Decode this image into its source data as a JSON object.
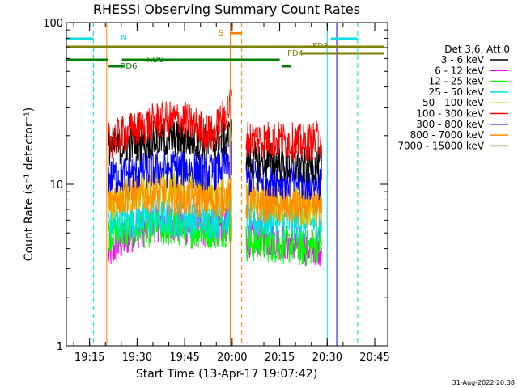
{
  "chart_data": {
    "type": "line",
    "title": "RHESSI Observing Summary Count Rates",
    "xlabel": "Start Time (13-Apr-17 19:07:42)",
    "ylabel": "Count Rate (s⁻¹ detector⁻¹)",
    "y_scale": "log",
    "ylim": [
      1,
      100
    ],
    "y_ticks": [
      {
        "v": 1,
        "label": "1"
      },
      {
        "v": 10,
        "label": "10"
      },
      {
        "v": 100,
        "label": "100"
      }
    ],
    "xlim": [
      19.128,
      20.818
    ],
    "x_ticks": [
      {
        "v": 19.25,
        "label": "19:15"
      },
      {
        "v": 19.5,
        "label": "19:30"
      },
      {
        "v": 19.75,
        "label": "19:45"
      },
      {
        "v": 20.0,
        "label": "20:00"
      },
      {
        "v": 20.25,
        "label": "20:15"
      },
      {
        "v": 20.5,
        "label": "20:30"
      },
      {
        "v": 20.75,
        "label": "20:45"
      }
    ],
    "legend_header": "Det 3,6, Att 0",
    "legend_placement": "right",
    "data_gap": [
      20.0,
      20.07
    ],
    "series": [
      {
        "name": "3 - 6 keV",
        "color": "#000000",
        "points": [
          [
            19.35,
            17
          ],
          [
            19.5,
            18
          ],
          [
            19.62,
            19
          ],
          [
            19.75,
            19
          ],
          [
            19.9,
            18
          ],
          [
            20.0,
            20
          ],
          [
            20.08,
            14
          ],
          [
            20.2,
            14
          ],
          [
            20.3,
            13
          ],
          [
            20.38,
            13
          ],
          [
            20.47,
            13
          ]
        ]
      },
      {
        "name": "6 - 12 keV",
        "color": "#ff00ff",
        "points": [
          [
            19.35,
            3.7
          ],
          [
            19.5,
            5.2
          ],
          [
            19.62,
            5.8
          ],
          [
            19.75,
            5.5
          ],
          [
            19.9,
            5.2
          ],
          [
            20.0,
            6
          ],
          [
            20.08,
            4.6
          ],
          [
            20.2,
            4.6
          ],
          [
            20.3,
            4.3
          ],
          [
            20.38,
            4.1
          ],
          [
            20.47,
            4.1
          ]
        ]
      },
      {
        "name": "12 - 25 keV",
        "color": "#00ff00",
        "points": [
          [
            19.35,
            5
          ],
          [
            19.5,
            5.2
          ],
          [
            19.62,
            5.4
          ],
          [
            19.75,
            5.3
          ],
          [
            19.9,
            5.2
          ],
          [
            20.0,
            5.5
          ],
          [
            20.08,
            4.3
          ],
          [
            20.2,
            4.3
          ],
          [
            20.3,
            4.2
          ],
          [
            20.38,
            4
          ],
          [
            20.47,
            4.4
          ]
        ]
      },
      {
        "name": "25 - 50 keV",
        "color": "#00e0e0",
        "points": [
          [
            19.35,
            5.8
          ],
          [
            19.5,
            6
          ],
          [
            19.62,
            6.2
          ],
          [
            19.75,
            6.1
          ],
          [
            19.9,
            6
          ],
          [
            20.0,
            6.3
          ],
          [
            20.08,
            6
          ],
          [
            20.2,
            6
          ],
          [
            20.3,
            5.8
          ],
          [
            20.38,
            5.8
          ],
          [
            20.47,
            5.8
          ]
        ]
      },
      {
        "name": "50 - 100 keV",
        "color": "#d0d000",
        "points": [
          [
            19.35,
            7.5
          ],
          [
            19.5,
            9
          ],
          [
            19.62,
            9.5
          ],
          [
            19.75,
            9.2
          ],
          [
            19.9,
            8.8
          ],
          [
            20.0,
            9.5
          ],
          [
            20.08,
            8
          ],
          [
            20.2,
            8
          ],
          [
            20.3,
            7.5
          ],
          [
            20.38,
            7.2
          ],
          [
            20.47,
            7.2
          ]
        ]
      },
      {
        "name": "100 - 300 keV",
        "color": "#ff0000",
        "points": [
          [
            19.35,
            18.5
          ],
          [
            19.5,
            22
          ],
          [
            19.62,
            25
          ],
          [
            19.75,
            25
          ],
          [
            19.9,
            20
          ],
          [
            20.0,
            32
          ],
          [
            20.08,
            19
          ],
          [
            20.2,
            19
          ],
          [
            20.3,
            18.5
          ],
          [
            20.38,
            18
          ],
          [
            20.47,
            19
          ]
        ]
      },
      {
        "name": "300 - 800 keV",
        "color": "#0000ff",
        "points": [
          [
            19.35,
            11
          ],
          [
            19.5,
            12
          ],
          [
            19.62,
            12.5
          ],
          [
            19.75,
            12.5
          ],
          [
            19.9,
            11.8
          ],
          [
            20.0,
            14
          ],
          [
            20.08,
            11
          ],
          [
            20.2,
            11
          ],
          [
            20.3,
            10.5
          ],
          [
            20.38,
            10.2
          ],
          [
            20.47,
            10.5
          ]
        ]
      },
      {
        "name": "800 - 7000 keV",
        "color": "#ff8c00",
        "points": [
          [
            19.35,
            8
          ],
          [
            19.5,
            8.8
          ],
          [
            19.62,
            8.5
          ],
          [
            19.75,
            8.2
          ],
          [
            19.9,
            7.9
          ],
          [
            20.0,
            8.5
          ],
          [
            20.08,
            7.5
          ],
          [
            20.2,
            7.5
          ],
          [
            20.3,
            7.3
          ],
          [
            20.38,
            7.1
          ],
          [
            20.47,
            7.1
          ]
        ]
      },
      {
        "name": "7000 - 15000 keV",
        "color": "#808000",
        "points": []
      }
    ],
    "flags": [
      {
        "label": "N",
        "color": "#00e0e0",
        "segments": [
          [
            19.128,
            19.27
          ],
          [
            20.52,
            20.66
          ]
        ]
      },
      {
        "label": "S",
        "color": "#ff8000",
        "segments": [
          [
            19.99,
            20.05
          ]
        ]
      },
      {
        "label": "FD3",
        "color": "#808000",
        "segments": [
          [
            19.128,
            20.36
          ],
          [
            20.36,
            20.8
          ]
        ]
      },
      {
        "label": "FD4",
        "color": "#808000",
        "segments": [
          [
            20.36,
            20.8
          ]
        ]
      },
      {
        "label": "RD0",
        "color": "#008000",
        "segments": [
          [
            19.128,
            19.35
          ],
          [
            19.42,
            20.25
          ]
        ]
      },
      {
        "label": "RD6",
        "color": "#008000",
        "segments": [
          [
            19.35,
            19.43
          ],
          [
            20.26,
            20.31
          ]
        ]
      }
    ],
    "vertical_markers": [
      {
        "color": "#00e0e0",
        "style": "solid",
        "x": 20.5
      },
      {
        "color": "#00e0e0",
        "style": "dashed",
        "x": 19.27
      },
      {
        "color": "#00e0e0",
        "style": "dashed",
        "x": 20.66
      },
      {
        "color": "#ff8000",
        "style": "solid",
        "x": 19.34
      },
      {
        "color": "#ff8000",
        "style": "solid",
        "x": 19.99
      },
      {
        "color": "#ff8000",
        "style": "dashed",
        "x": 20.05
      },
      {
        "color": "#0000ff",
        "style": "solid",
        "x": 20.55
      }
    ]
  },
  "footer_timestamp": "31-Aug-2022 20:38"
}
